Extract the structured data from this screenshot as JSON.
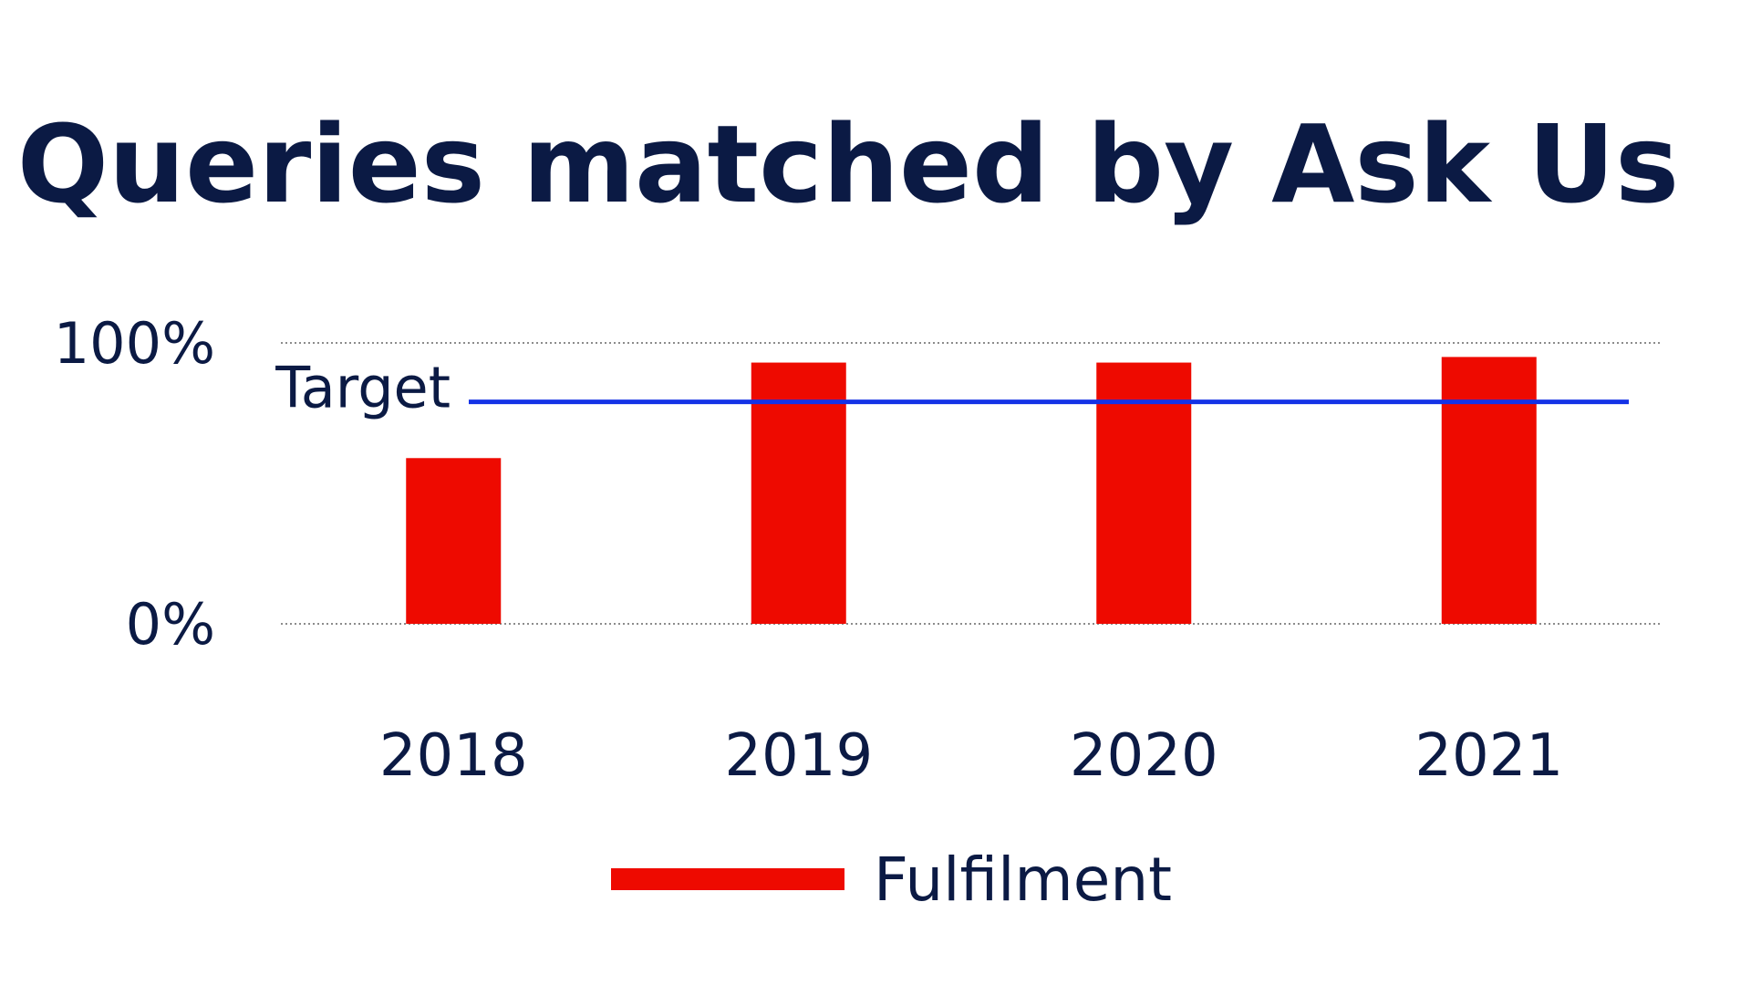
{
  "chart_data": {
    "type": "bar",
    "title": "Queries matched by Ask Us",
    "categories": [
      "2018",
      "2019",
      "2020",
      "2021"
    ],
    "series": [
      {
        "name": "Fulfilment",
        "values": [
          59,
          93,
          93,
          95
        ],
        "color": "#ee0a00"
      }
    ],
    "y_ticks": [
      {
        "value": 0,
        "label": "0%"
      },
      {
        "value": 100,
        "label": "100%"
      }
    ],
    "ylim": [
      0,
      100
    ],
    "grid": true,
    "reference_line": {
      "label": "Target",
      "value": 79,
      "color": "#1432e6"
    },
    "legend": {
      "placement": "bottom-center"
    }
  }
}
